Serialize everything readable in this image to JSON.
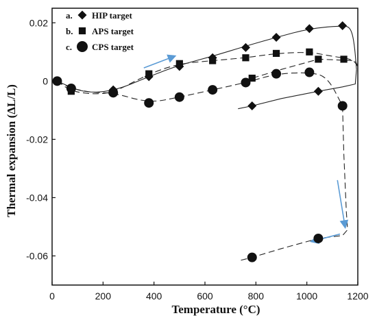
{
  "chart_data": {
    "type": "scatter",
    "xlabel": "Temperature (°C)",
    "ylabel": "Thermal expansion (ΔL/L)",
    "xlim": [
      0,
      1200
    ],
    "ylim": [
      -0.07,
      0.025
    ],
    "x_ticks": [
      0,
      200,
      400,
      600,
      800,
      1000,
      1200
    ],
    "y_ticks": [
      0.02,
      0,
      -0.02,
      -0.04,
      -0.06
    ],
    "y_tick_labels": [
      "0.02",
      "0",
      "-0.02",
      "-0.04",
      "-0.06"
    ],
    "legend_position": "top-left",
    "series": [
      {
        "name": "HIP target",
        "prefix": "a.",
        "marker": "diamond",
        "line_style": "solid",
        "points": [
          [
            20,
            0
          ],
          [
            240,
            -0.003
          ],
          [
            380,
            0.0015
          ],
          [
            500,
            0.005
          ],
          [
            630,
            0.008
          ],
          [
            760,
            0.0115
          ],
          [
            880,
            0.015
          ],
          [
            1010,
            0.018
          ],
          [
            1140,
            0.019
          ],
          [
            1045,
            -0.0035
          ],
          [
            785,
            -0.0085
          ]
        ]
      },
      {
        "name": "APS target",
        "prefix": "b.",
        "marker": "square",
        "line_style": "dashed",
        "points": [
          [
            75,
            -0.0035
          ],
          [
            380,
            0.0025
          ],
          [
            500,
            0.006
          ],
          [
            630,
            0.007
          ],
          [
            760,
            0.008
          ],
          [
            880,
            0.0095
          ],
          [
            1010,
            0.01
          ],
          [
            1045,
            0.0075
          ],
          [
            1145,
            0.0075
          ],
          [
            785,
            0.001
          ]
        ]
      },
      {
        "name": "CPS target",
        "prefix": "c.",
        "marker": "circle",
        "line_style": "dashed",
        "points": [
          [
            20,
            0
          ],
          [
            75,
            -0.0025
          ],
          [
            240,
            -0.004
          ],
          [
            380,
            -0.0075
          ],
          [
            500,
            -0.0055
          ],
          [
            630,
            -0.003
          ],
          [
            760,
            -0.0005
          ],
          [
            880,
            0.0025
          ],
          [
            1010,
            0.003
          ],
          [
            1140,
            -0.0085
          ],
          [
            1045,
            -0.054
          ],
          [
            785,
            -0.0605
          ]
        ]
      }
    ],
    "arrow_color": "#5b9bd5"
  }
}
